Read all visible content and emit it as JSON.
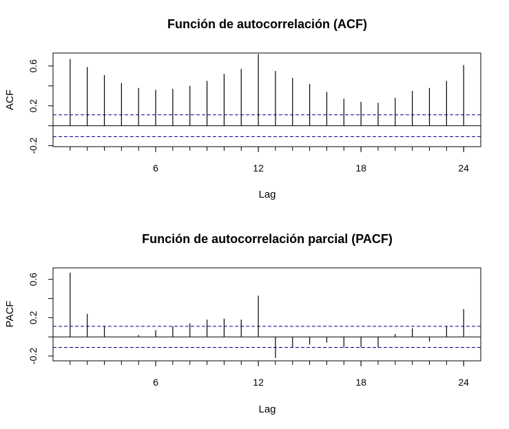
{
  "chart_data": [
    {
      "type": "bar",
      "title": "Función de autocorrelación (ACF)",
      "xlabel": "Lag",
      "ylabel": "ACF",
      "x_ticks": [
        6,
        12,
        18,
        24
      ],
      "x_tick_labels": [
        "6",
        "12",
        "18",
        "24"
      ],
      "y_ticks": [
        -0.2,
        0.2,
        0.6
      ],
      "y_tick_labels": [
        "-0.2",
        "0.2",
        "0.6"
      ],
      "xlim": [
        0,
        25
      ],
      "ylim": [
        -0.21,
        0.73
      ],
      "confidence_band": 0.11,
      "colors": {
        "bars": "#000000",
        "band": "#00008b"
      },
      "lags": [
        1,
        2,
        3,
        4,
        5,
        6,
        7,
        8,
        9,
        10,
        11,
        12,
        13,
        14,
        15,
        16,
        17,
        18,
        19,
        20,
        21,
        22,
        23,
        24
      ],
      "values": [
        0.67,
        0.59,
        0.51,
        0.43,
        0.38,
        0.36,
        0.37,
        0.4,
        0.45,
        0.52,
        0.57,
        0.72,
        0.55,
        0.48,
        0.42,
        0.34,
        0.27,
        0.24,
        0.23,
        0.28,
        0.35,
        0.38,
        0.45,
        0.61
      ]
    },
    {
      "type": "bar",
      "title": "Función de autocorrelación parcial (PACF)",
      "xlabel": "Lag",
      "ylabel": "PACF",
      "x_ticks": [
        6,
        12,
        18,
        24
      ],
      "x_tick_labels": [
        "6",
        "12",
        "18",
        "24"
      ],
      "y_ticks": [
        -0.2,
        0.2,
        0.6
      ],
      "y_tick_labels": [
        "-0.2",
        "0.2",
        "0.6"
      ],
      "xlim": [
        0,
        25
      ],
      "ylim": [
        -0.25,
        0.72
      ],
      "confidence_band": 0.11,
      "colors": {
        "bars": "#000000",
        "band": "#00008b"
      },
      "lags": [
        1,
        2,
        3,
        4,
        5,
        6,
        7,
        8,
        9,
        10,
        11,
        12,
        13,
        14,
        15,
        16,
        17,
        18,
        19,
        20,
        21,
        22,
        23,
        24
      ],
      "values": [
        0.67,
        0.24,
        0.11,
        0.0,
        0.02,
        0.07,
        0.11,
        0.14,
        0.18,
        0.19,
        0.18,
        0.43,
        -0.22,
        -0.11,
        -0.08,
        -0.06,
        -0.11,
        -0.11,
        -0.11,
        0.03,
        0.09,
        -0.05,
        0.11,
        0.29
      ]
    }
  ]
}
